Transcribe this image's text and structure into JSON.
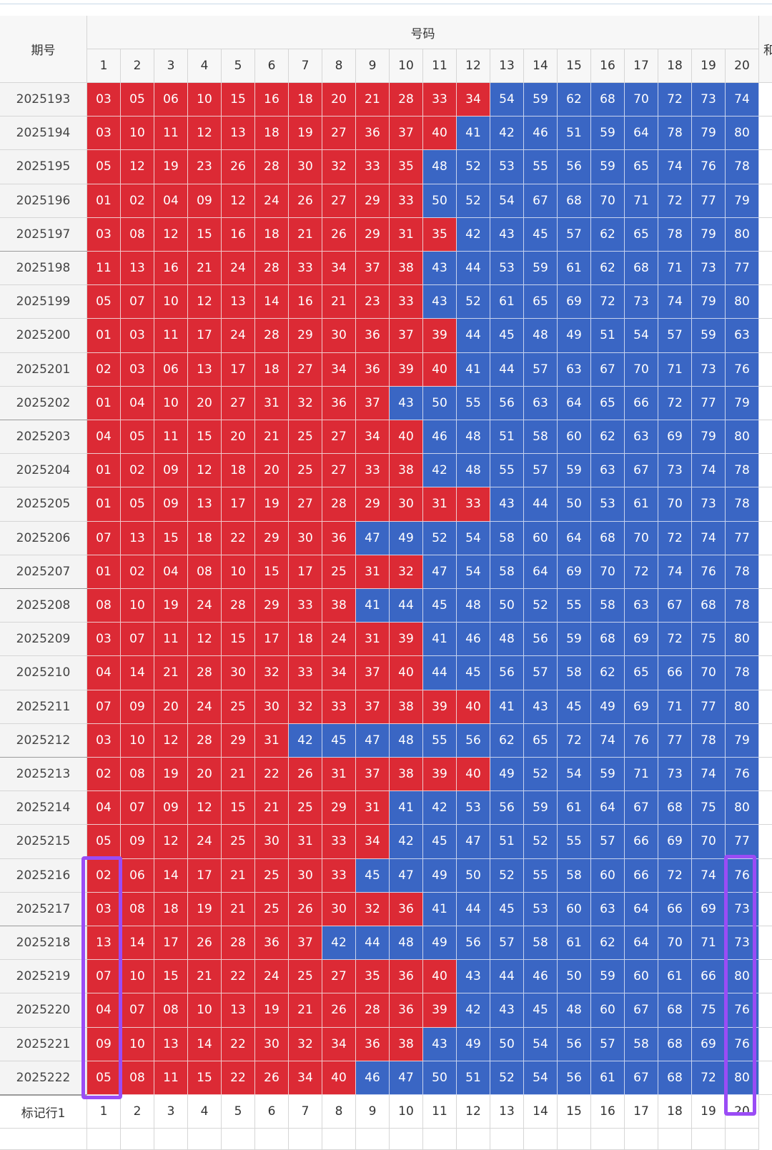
{
  "header": {
    "period": "期号",
    "numbers": "号码",
    "sum": "和",
    "columns": [
      1,
      2,
      3,
      4,
      5,
      6,
      7,
      8,
      9,
      10,
      11,
      12,
      13,
      14,
      15,
      16,
      17,
      18,
      19,
      20
    ]
  },
  "rows": [
    {
      "period": "2025193",
      "numbers": [
        "03",
        "05",
        "06",
        "10",
        "15",
        "16",
        "18",
        "20",
        "21",
        "28",
        "33",
        "34",
        "54",
        "59",
        "62",
        "68",
        "70",
        "72",
        "73",
        "74"
      ]
    },
    {
      "period": "2025194",
      "numbers": [
        "03",
        "10",
        "11",
        "12",
        "13",
        "18",
        "19",
        "27",
        "36",
        "37",
        "40",
        "41",
        "42",
        "46",
        "51",
        "59",
        "64",
        "78",
        "79",
        "80"
      ]
    },
    {
      "period": "2025195",
      "numbers": [
        "05",
        "12",
        "19",
        "23",
        "26",
        "28",
        "30",
        "32",
        "33",
        "35",
        "48",
        "52",
        "53",
        "55",
        "56",
        "59",
        "65",
        "74",
        "76",
        "78"
      ]
    },
    {
      "period": "2025196",
      "numbers": [
        "01",
        "02",
        "04",
        "09",
        "12",
        "24",
        "26",
        "27",
        "29",
        "33",
        "50",
        "52",
        "54",
        "67",
        "68",
        "70",
        "71",
        "72",
        "77",
        "79"
      ]
    },
    {
      "period": "2025197",
      "numbers": [
        "03",
        "08",
        "12",
        "15",
        "16",
        "18",
        "21",
        "26",
        "29",
        "31",
        "35",
        "42",
        "43",
        "45",
        "57",
        "62",
        "65",
        "78",
        "79",
        "80"
      ]
    },
    {
      "period": "2025198",
      "numbers": [
        "11",
        "13",
        "16",
        "21",
        "24",
        "28",
        "33",
        "34",
        "37",
        "38",
        "43",
        "44",
        "53",
        "59",
        "61",
        "62",
        "68",
        "71",
        "73",
        "77"
      ]
    },
    {
      "period": "2025199",
      "numbers": [
        "05",
        "07",
        "10",
        "12",
        "13",
        "14",
        "16",
        "21",
        "23",
        "33",
        "43",
        "52",
        "61",
        "65",
        "69",
        "72",
        "73",
        "74",
        "79",
        "80"
      ]
    },
    {
      "period": "2025200",
      "numbers": [
        "01",
        "03",
        "11",
        "17",
        "24",
        "28",
        "29",
        "30",
        "36",
        "37",
        "39",
        "44",
        "45",
        "48",
        "49",
        "51",
        "54",
        "57",
        "59",
        "63"
      ]
    },
    {
      "period": "2025201",
      "numbers": [
        "02",
        "03",
        "06",
        "13",
        "17",
        "18",
        "27",
        "34",
        "36",
        "39",
        "40",
        "41",
        "44",
        "57",
        "63",
        "67",
        "70",
        "71",
        "73",
        "76"
      ]
    },
    {
      "period": "2025202",
      "numbers": [
        "01",
        "04",
        "10",
        "20",
        "27",
        "31",
        "32",
        "36",
        "37",
        "43",
        "50",
        "55",
        "56",
        "63",
        "64",
        "65",
        "66",
        "72",
        "77",
        "79"
      ]
    },
    {
      "period": "2025203",
      "numbers": [
        "04",
        "05",
        "11",
        "15",
        "20",
        "21",
        "25",
        "27",
        "34",
        "40",
        "46",
        "48",
        "51",
        "58",
        "60",
        "62",
        "63",
        "69",
        "79",
        "80"
      ]
    },
    {
      "period": "2025204",
      "numbers": [
        "01",
        "02",
        "09",
        "12",
        "18",
        "20",
        "25",
        "27",
        "33",
        "38",
        "42",
        "48",
        "55",
        "57",
        "59",
        "63",
        "67",
        "73",
        "74",
        "78"
      ]
    },
    {
      "period": "2025205",
      "numbers": [
        "01",
        "05",
        "09",
        "13",
        "17",
        "19",
        "27",
        "28",
        "29",
        "30",
        "31",
        "33",
        "43",
        "44",
        "50",
        "53",
        "61",
        "70",
        "73",
        "78"
      ]
    },
    {
      "period": "2025206",
      "numbers": [
        "07",
        "13",
        "15",
        "18",
        "22",
        "29",
        "30",
        "36",
        "47",
        "49",
        "52",
        "54",
        "58",
        "60",
        "64",
        "68",
        "70",
        "72",
        "74",
        "77"
      ]
    },
    {
      "period": "2025207",
      "numbers": [
        "01",
        "02",
        "04",
        "08",
        "10",
        "15",
        "17",
        "25",
        "31",
        "32",
        "47",
        "54",
        "58",
        "64",
        "69",
        "70",
        "72",
        "74",
        "76",
        "78"
      ]
    },
    {
      "period": "2025208",
      "numbers": [
        "08",
        "10",
        "19",
        "24",
        "28",
        "29",
        "33",
        "38",
        "41",
        "44",
        "45",
        "48",
        "50",
        "52",
        "55",
        "58",
        "63",
        "67",
        "68",
        "78"
      ]
    },
    {
      "period": "2025209",
      "numbers": [
        "03",
        "07",
        "11",
        "12",
        "15",
        "17",
        "18",
        "24",
        "31",
        "39",
        "41",
        "46",
        "48",
        "56",
        "59",
        "68",
        "69",
        "72",
        "75",
        "80"
      ]
    },
    {
      "period": "2025210",
      "numbers": [
        "04",
        "14",
        "21",
        "28",
        "30",
        "32",
        "33",
        "34",
        "37",
        "40",
        "44",
        "45",
        "56",
        "57",
        "58",
        "62",
        "65",
        "66",
        "70",
        "78"
      ]
    },
    {
      "period": "2025211",
      "numbers": [
        "07",
        "09",
        "20",
        "24",
        "25",
        "30",
        "32",
        "33",
        "37",
        "38",
        "39",
        "40",
        "41",
        "43",
        "45",
        "49",
        "69",
        "71",
        "77",
        "80"
      ]
    },
    {
      "period": "2025212",
      "numbers": [
        "03",
        "10",
        "12",
        "28",
        "29",
        "31",
        "42",
        "45",
        "47",
        "48",
        "55",
        "56",
        "62",
        "65",
        "72",
        "74",
        "76",
        "77",
        "78",
        "79"
      ]
    },
    {
      "period": "2025213",
      "numbers": [
        "02",
        "08",
        "19",
        "20",
        "21",
        "22",
        "26",
        "31",
        "37",
        "38",
        "39",
        "40",
        "49",
        "52",
        "54",
        "59",
        "71",
        "73",
        "74",
        "76"
      ]
    },
    {
      "period": "2025214",
      "numbers": [
        "04",
        "07",
        "09",
        "12",
        "15",
        "21",
        "25",
        "29",
        "31",
        "41",
        "42",
        "53",
        "56",
        "59",
        "61",
        "64",
        "67",
        "68",
        "75",
        "80"
      ]
    },
    {
      "period": "2025215",
      "numbers": [
        "05",
        "09",
        "12",
        "24",
        "25",
        "30",
        "31",
        "33",
        "34",
        "42",
        "45",
        "47",
        "51",
        "52",
        "55",
        "57",
        "66",
        "69",
        "70",
        "77"
      ]
    },
    {
      "period": "2025216",
      "numbers": [
        "02",
        "06",
        "14",
        "17",
        "21",
        "25",
        "30",
        "33",
        "45",
        "47",
        "49",
        "50",
        "52",
        "55",
        "58",
        "60",
        "66",
        "72",
        "74",
        "76"
      ]
    },
    {
      "period": "2025217",
      "numbers": [
        "03",
        "08",
        "18",
        "19",
        "21",
        "25",
        "26",
        "30",
        "32",
        "36",
        "41",
        "44",
        "45",
        "53",
        "60",
        "63",
        "64",
        "66",
        "69",
        "73"
      ]
    },
    {
      "period": "2025218",
      "numbers": [
        "13",
        "14",
        "17",
        "26",
        "28",
        "36",
        "37",
        "42",
        "44",
        "48",
        "49",
        "56",
        "57",
        "58",
        "61",
        "62",
        "64",
        "70",
        "71",
        "73"
      ]
    },
    {
      "period": "2025219",
      "numbers": [
        "07",
        "10",
        "15",
        "21",
        "22",
        "24",
        "25",
        "27",
        "35",
        "36",
        "40",
        "43",
        "44",
        "46",
        "50",
        "59",
        "60",
        "61",
        "66",
        "80"
      ]
    },
    {
      "period": "2025220",
      "numbers": [
        "04",
        "07",
        "08",
        "10",
        "13",
        "19",
        "21",
        "26",
        "28",
        "36",
        "39",
        "42",
        "43",
        "45",
        "48",
        "60",
        "67",
        "68",
        "75",
        "76"
      ]
    },
    {
      "period": "2025221",
      "numbers": [
        "09",
        "10",
        "13",
        "14",
        "22",
        "30",
        "32",
        "34",
        "36",
        "38",
        "43",
        "49",
        "50",
        "54",
        "56",
        "57",
        "58",
        "68",
        "69",
        "76"
      ]
    },
    {
      "period": "2025222",
      "numbers": [
        "05",
        "08",
        "11",
        "15",
        "22",
        "26",
        "34",
        "40",
        "46",
        "47",
        "50",
        "51",
        "52",
        "54",
        "56",
        "61",
        "67",
        "68",
        "72",
        "80"
      ]
    }
  ],
  "footer": {
    "label": "标记行1",
    "columns": [
      1,
      2,
      3,
      4,
      5,
      6,
      7,
      8,
      9,
      10,
      11,
      12,
      13,
      14,
      15,
      16,
      17,
      18,
      19,
      20
    ]
  }
}
